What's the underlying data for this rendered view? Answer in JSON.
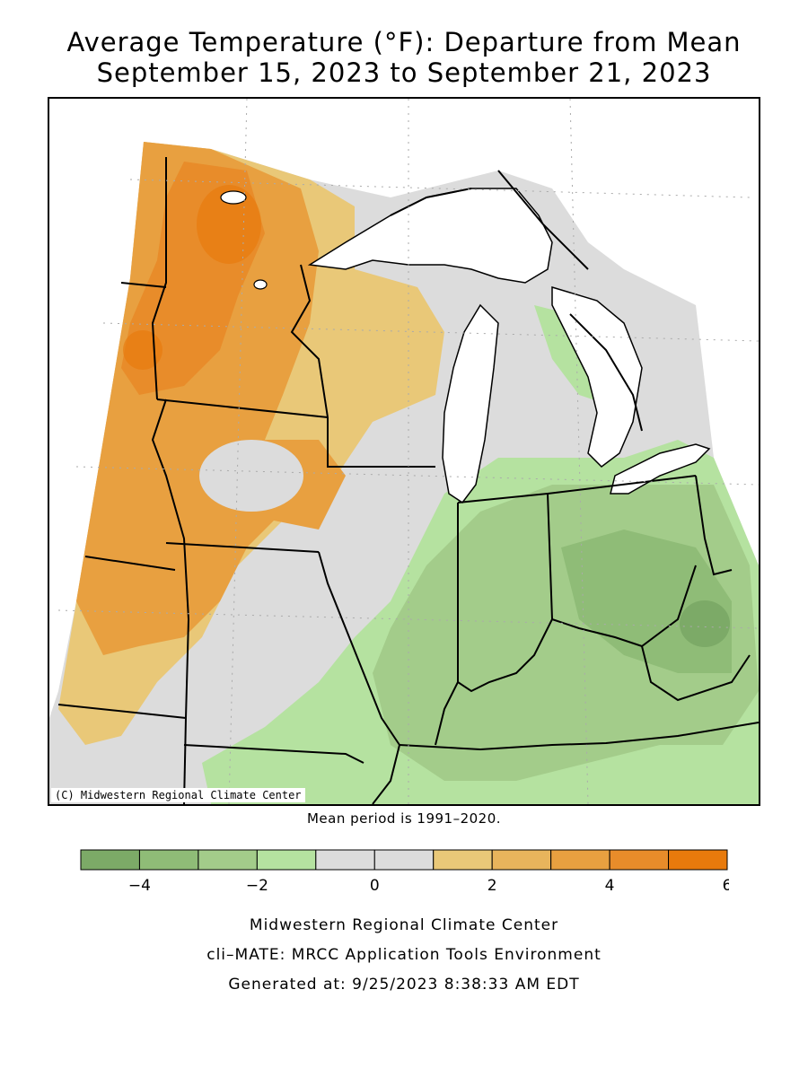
{
  "title_line1": "Average Temperature (°F): Departure from Mean",
  "title_line2": "September 15, 2023 to September 21, 2023",
  "copyright": "(C) Midwestern Regional Climate Center",
  "mean_period": "Mean period is 1991–2020.",
  "footer": {
    "line1": "Midwestern Regional Climate Center",
    "line2": "cli–MATE: MRCC Application Tools Environment",
    "line3": "Generated at: 9/25/2023 8:38:33 AM EDT"
  },
  "legend": {
    "tick_labels": [
      "−4",
      "−2",
      "0",
      "2",
      "4",
      "6"
    ],
    "tick_values": [
      -4,
      -2,
      0,
      2,
      4,
      6
    ],
    "range": [
      -5,
      6
    ],
    "bin_colors": [
      "#7caa67",
      "#8fbc77",
      "#a3cc8a",
      "#b5e2a0",
      "#dcdcdc",
      "#dcdcdc",
      "#e9c878",
      "#e8b45c",
      "#e8a040",
      "#e88c2a",
      "#e87a0c"
    ]
  },
  "colors": {
    "strong_warm": "#e88c2a",
    "warm": "#e8a040",
    "mild_warm": "#e9c878",
    "neutral": "#dcdcdc",
    "mild_cool": "#b5e2a0",
    "cool": "#a3cc8a",
    "strong_cool": "#8fbc77",
    "strongest_cool": "#7caa67",
    "water": "#ffffff",
    "borders": "#000000"
  }
}
